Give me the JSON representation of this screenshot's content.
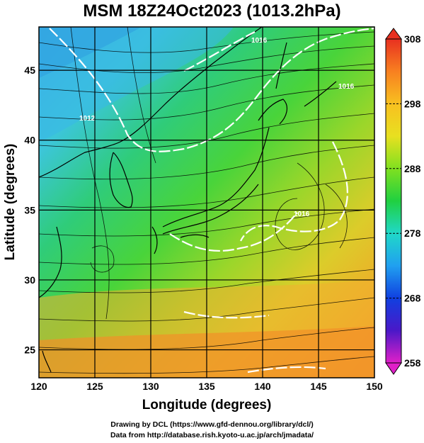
{
  "title": "MSM 18Z24Oct2023 (1013.2hPa)",
  "map": {
    "xlabel": "Longitude (degrees)",
    "ylabel": "Latitude  (degrees)",
    "lon_ticks": [
      "120",
      "125",
      "130",
      "135",
      "140",
      "145",
      "150"
    ],
    "lat_ticks": [
      "25",
      "30",
      "35",
      "40",
      "45"
    ],
    "contour_labels": [
      "1016",
      "1012",
      "1016",
      "1016"
    ]
  },
  "colorbar": {
    "ticks": [
      "308",
      "298",
      "288",
      "278",
      "268",
      "258"
    ]
  },
  "credits": {
    "line1": "Drawing by DCL (https://www.gfd-dennou.org/library/dcl/)",
    "line2": "Data from http://database.rish.kyoto-u.ac.jp/arch/jmadata/"
  }
}
